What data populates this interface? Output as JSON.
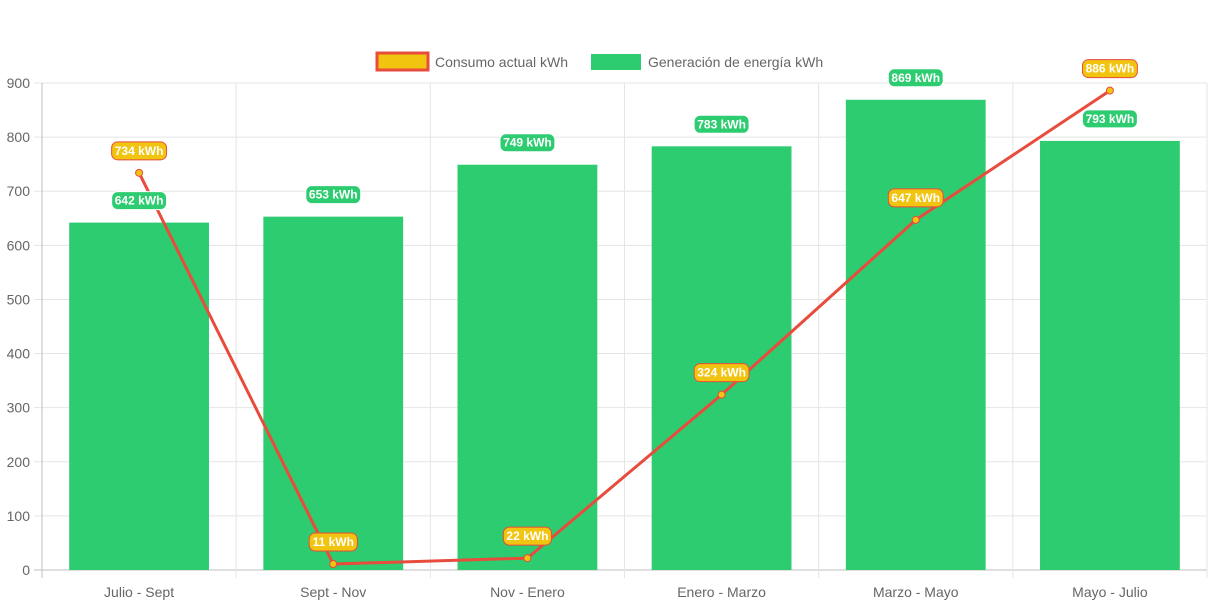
{
  "chart_data": {
    "type": "bar",
    "title": "",
    "xlabel": "",
    "ylabel": "",
    "categories": [
      "Julio - Sept",
      "Sept - Nov",
      "Nov - Enero",
      "Enero - Marzo",
      "Marzo - Mayo",
      "Mayo - Julio"
    ],
    "ylim": [
      0,
      900
    ],
    "yticks": [
      0,
      100,
      200,
      300,
      400,
      500,
      600,
      700,
      800,
      900
    ],
    "grid": true,
    "legend_position": "top-center",
    "series": [
      {
        "name": "Consumo actual kWh",
        "type": "line",
        "values": [
          734,
          11,
          22,
          324,
          647,
          886
        ],
        "labels": [
          "734 kWh",
          "11 kWh",
          "22 kWh",
          "324 kWh",
          "647 kWh",
          "886 kWh"
        ],
        "line_color": "#e74c3c",
        "fill_color": "#f1c40f"
      },
      {
        "name": "Generación de energía kWh",
        "type": "bar",
        "values": [
          642,
          653,
          749,
          783,
          869,
          793
        ],
        "labels": [
          "642 kWh",
          "653 kWh",
          "749 kWh",
          "783 kWh",
          "869 kWh",
          "793 kWh"
        ],
        "color": "#2ecc71"
      }
    ]
  }
}
